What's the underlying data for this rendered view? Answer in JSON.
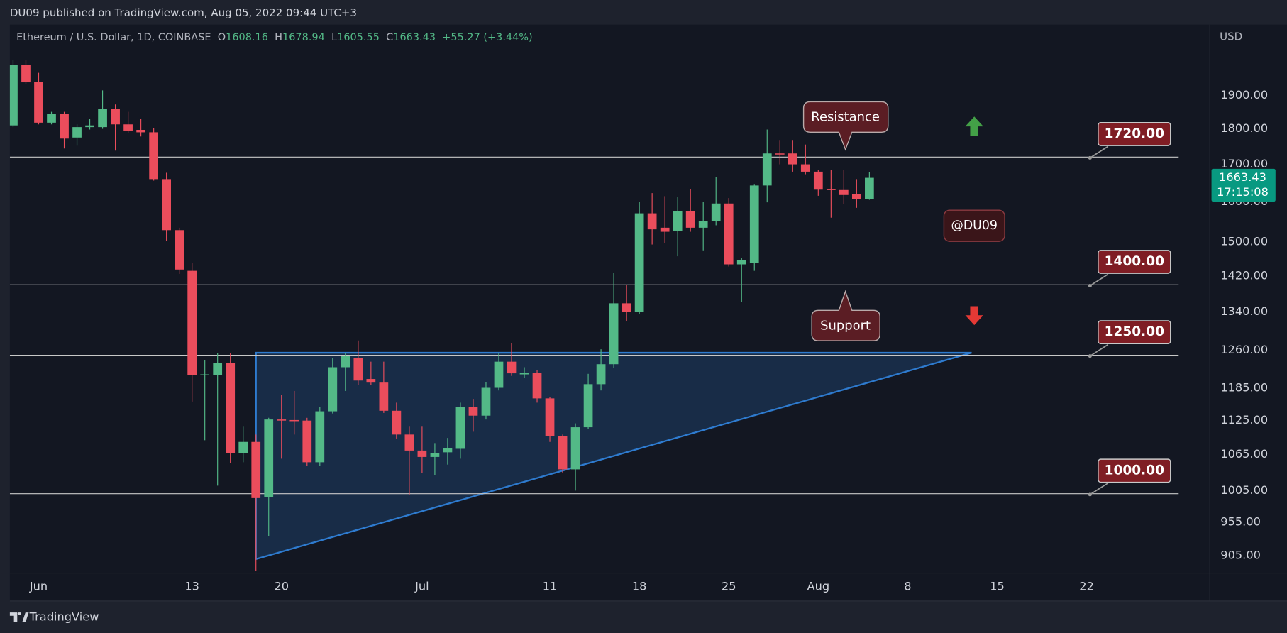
{
  "header": {
    "published": "DU09 published on TradingView.com, Aug 05, 2022 09:44 UTC+3"
  },
  "footer": {
    "brand": "TradingView"
  },
  "chart_data": {
    "type": "candlestick",
    "symbol": "Ethereum / U.S. Dollar, 1D, COINBASE",
    "legend_keys": [
      "O",
      "H",
      "L",
      "C"
    ],
    "change_label": "+55.27 (+3.44%)",
    "currency": "USD",
    "countdown": "17:15:08",
    "up_color": "#53b987",
    "down_color": "#eb4d5c",
    "log_scale": true,
    "grid": false,
    "x": [
      "May 30",
      "May 31",
      "Jun 1",
      "Jun 2",
      "Jun 3",
      "Jun 4",
      "Jun 5",
      "Jun 6",
      "Jun 7",
      "Jun 8",
      "Jun 9",
      "Jun 10",
      "Jun 11",
      "Jun 12",
      "Jun 13",
      "Jun 14",
      "Jun 15",
      "Jun 16",
      "Jun 17",
      "Jun 18",
      "Jun 19",
      "Jun 20",
      "Jun 21",
      "Jun 22",
      "Jun 23",
      "Jun 24",
      "Jun 25",
      "Jun 26",
      "Jun 27",
      "Jun 28",
      "Jun 29",
      "Jun 30",
      "Jul 1",
      "Jul 2",
      "Jul 3",
      "Jul 4",
      "Jul 5",
      "Jul 6",
      "Jul 7",
      "Jul 8",
      "Jul 9",
      "Jul 10",
      "Jul 11",
      "Jul 12",
      "Jul 13",
      "Jul 14",
      "Jul 15",
      "Jul 16",
      "Jul 17",
      "Jul 18",
      "Jul 19",
      "Jul 20",
      "Jul 21",
      "Jul 22",
      "Jul 23",
      "Jul 24",
      "Jul 25",
      "Jul 26",
      "Jul 27",
      "Jul 28",
      "Jul 29",
      "Jul 30",
      "Jul 31",
      "Aug 1",
      "Aug 2",
      "Aug 3",
      "Aug 4",
      "Aug 5"
    ],
    "open": [
      1810,
      1996,
      1942,
      1818,
      1843,
      1775,
      1805,
      1805,
      1858,
      1813,
      1797,
      1790,
      1660,
      1529,
      1432,
      1210,
      1210,
      1235,
      1068,
      1087,
      995,
      1127,
      1126,
      1125,
      1052,
      1142,
      1226,
      1245,
      1203,
      1196,
      1143,
      1100,
      1072,
      1061,
      1069,
      1075,
      1150,
      1134,
      1186,
      1237,
      1212,
      1215,
      1166,
      1097,
      1040,
      1113,
      1193,
      1232,
      1359,
      1340,
      1571,
      1535,
      1527,
      1576,
      1535,
      1551,
      1596,
      1447,
      1451,
      1643,
      1730,
      1730,
      1700,
      1680,
      1633,
      1631,
      1620,
      1608.16
    ],
    "high": [
      2012,
      2012,
      1970,
      1850,
      1850,
      1813,
      1829,
      1915,
      1872,
      1850,
      1829,
      1802,
      1677,
      1535,
      1450,
      1240,
      1255,
      1255,
      1114,
      1100,
      1130,
      1172,
      1180,
      1130,
      1150,
      1245,
      1254,
      1280,
      1237,
      1237,
      1158,
      1114,
      1114,
      1085,
      1094,
      1158,
      1165,
      1197,
      1254,
      1275,
      1226,
      1220,
      1169,
      1100,
      1120,
      1213,
      1262,
      1427,
      1400,
      1600,
      1623,
      1615,
      1612,
      1633,
      1600,
      1666,
      1610,
      1462,
      1647,
      1798,
      1768,
      1768,
      1755,
      1685,
      1685,
      1685,
      1660,
      1678.94
    ],
    "low": [
      1805,
      1935,
      1813,
      1813,
      1744,
      1752,
      1798,
      1800,
      1738,
      1788,
      1778,
      1656,
      1502,
      1425,
      1160,
      1090,
      1013,
      1050,
      1052,
      883,
      934,
      1058,
      1100,
      1046,
      1046,
      1138,
      1180,
      1192,
      1192,
      1139,
      1093,
      998,
      1034,
      1030,
      1048,
      1058,
      1105,
      1127,
      1181,
      1209,
      1205,
      1158,
      1087,
      1034,
      1005,
      1110,
      1181,
      1224,
      1320,
      1336,
      1494,
      1497,
      1466,
      1525,
      1480,
      1541,
      1442,
      1362,
      1432,
      1599,
      1700,
      1680,
      1673,
      1616,
      1560,
      1594,
      1585,
      1605.55
    ],
    "close": [
      1996,
      1940,
      1818,
      1843,
      1772,
      1805,
      1810,
      1858,
      1813,
      1795,
      1790,
      1660,
      1529,
      1435,
      1210,
      1212,
      1235,
      1068,
      1087,
      993,
      1127,
      1125,
      1124,
      1052,
      1142,
      1226,
      1248,
      1200,
      1196,
      1143,
      1100,
      1072,
      1061,
      1068,
      1076,
      1150,
      1134,
      1186,
      1237,
      1214,
      1215,
      1166,
      1097,
      1040,
      1113,
      1193,
      1232,
      1359,
      1340,
      1571,
      1531,
      1525,
      1576,
      1535,
      1551,
      1596,
      1447,
      1457,
      1643,
      1730,
      1727,
      1700,
      1680,
      1632,
      1631,
      1618,
      1608,
      1663.43
    ],
    "xlim": [
      "May 29",
      "Sep 1"
    ],
    "xticks": [
      {
        "value": "Jun 1",
        "label": "Jun"
      },
      {
        "value": "Jun 13",
        "label": "13"
      },
      {
        "value": "Jun 20",
        "label": "20"
      },
      {
        "value": "Jul 1",
        "label": "Jul"
      },
      {
        "value": "Jul 11",
        "label": "11"
      },
      {
        "value": "Jul 18",
        "label": "18"
      },
      {
        "value": "Jul 25",
        "label": "25"
      },
      {
        "value": "Aug 1",
        "label": "Aug"
      },
      {
        "value": "Aug 8",
        "label": "8"
      },
      {
        "value": "Aug 15",
        "label": "15"
      },
      {
        "value": "Aug 22",
        "label": "22"
      }
    ],
    "ylim": [
      880,
      2129
    ],
    "yticks": [
      {
        "value": 1900,
        "label": "1900.00"
      },
      {
        "value": 1800,
        "label": "1800.00"
      },
      {
        "value": 1700,
        "label": "1700.00"
      },
      {
        "value": 1600,
        "label": "1600.00"
      },
      {
        "value": 1500,
        "label": "1500.00"
      },
      {
        "value": 1420,
        "label": "1420.00"
      },
      {
        "value": 1340,
        "label": "1340.00"
      },
      {
        "value": 1260,
        "label": "1260.00"
      },
      {
        "value": 1185,
        "label": "1185.00"
      },
      {
        "value": 1125,
        "label": "1125.00"
      },
      {
        "value": 1065,
        "label": "1065.00"
      },
      {
        "value": 1005,
        "label": "1005.00"
      },
      {
        "value": 955,
        "label": "955.00"
      },
      {
        "value": 905,
        "label": "905.00"
      }
    ],
    "levels": [
      {
        "value": 1720,
        "label": "1720.00"
      },
      {
        "value": 1400,
        "label": "1400.00"
      },
      {
        "value": 1250,
        "label": "1250.00"
      },
      {
        "value": 1000,
        "label": "1000.00"
      }
    ],
    "level_color": "#7f1d24",
    "annotations": {
      "resistance": "Resistance",
      "support": "Support",
      "watermark": "@DU09"
    },
    "triangle": {
      "x": [
        "Jun 18",
        "Aug 13",
        "Jun 18"
      ],
      "y": [
        1255,
        1255,
        900
      ]
    },
    "triangle_color": "#2e7bcf"
  }
}
